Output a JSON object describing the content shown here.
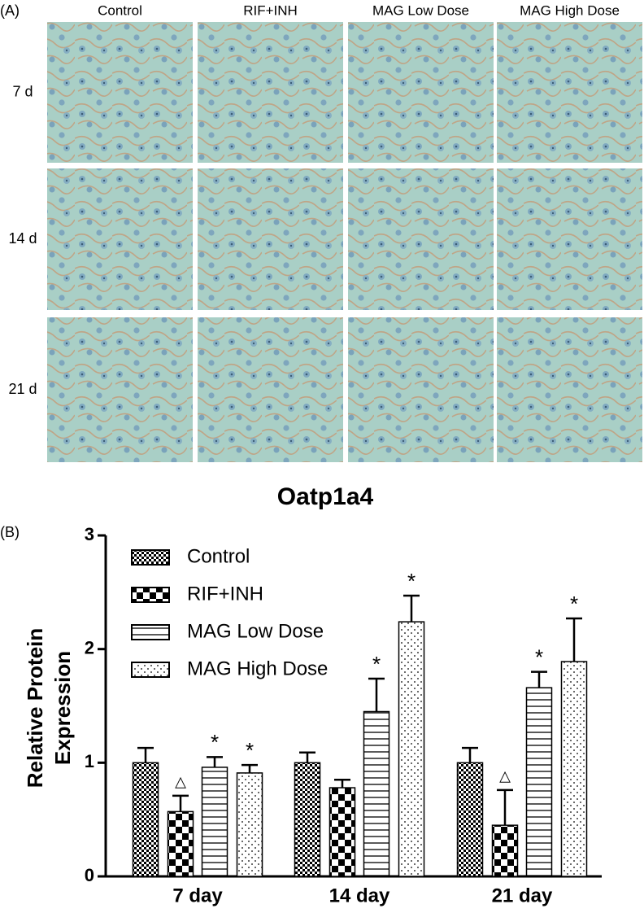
{
  "panel_a": {
    "label": "(A)",
    "columns": [
      "Control",
      "RIF+INH",
      "MAG Low Dose",
      "MAG High Dose"
    ],
    "rows": [
      "7 d",
      "14 d",
      "21 d"
    ]
  },
  "chart_data": {
    "type": "bar",
    "panel_label": "(B)",
    "title": "Oatp1a4",
    "ylabel": [
      "Relative Protein",
      "Expression"
    ],
    "categories": [
      "7 day",
      "14 day",
      "21 day"
    ],
    "series": [
      {
        "name": "Control",
        "color": "#000000",
        "pattern": "fine-checker",
        "values": [
          1.0,
          1.0,
          1.0
        ],
        "errors": [
          0.13,
          0.09,
          0.13
        ],
        "markers": [
          null,
          null,
          null
        ]
      },
      {
        "name": "RIF+INH",
        "color": "#000000",
        "pattern": "checker",
        "values": [
          0.57,
          0.78,
          0.45
        ],
        "errors": [
          0.14,
          0.07,
          0.31
        ],
        "markers": [
          "△",
          null,
          "△"
        ]
      },
      {
        "name": "MAG Low Dose",
        "color": "#000000",
        "pattern": "hlines",
        "values": [
          0.96,
          1.45,
          1.66
        ],
        "errors": [
          0.09,
          0.29,
          0.14
        ],
        "markers": [
          "*",
          "*",
          "*"
        ]
      },
      {
        "name": "MAG High Dose",
        "color": "#000000",
        "pattern": "dots",
        "values": [
          0.91,
          2.24,
          1.89
        ],
        "errors": [
          0.07,
          0.23,
          0.38
        ],
        "markers": [
          "*",
          "*",
          "*"
        ]
      }
    ],
    "ylim": [
      0,
      3
    ],
    "yticks": [
      0,
      1,
      2,
      3
    ],
    "grid": false,
    "legend": "top-left"
  }
}
